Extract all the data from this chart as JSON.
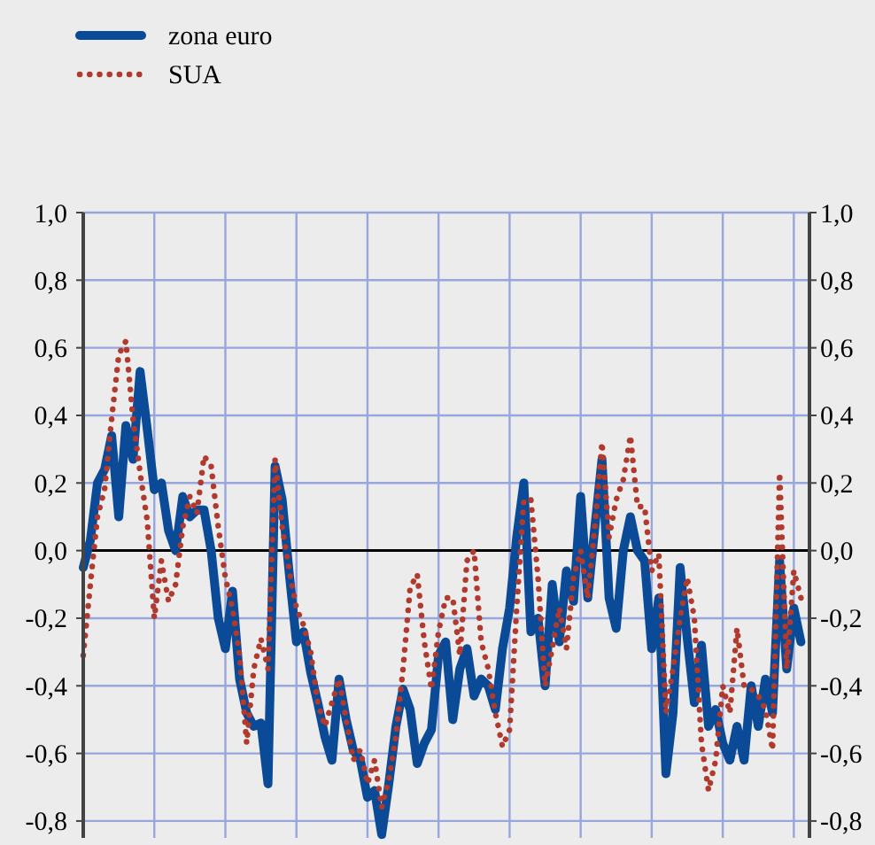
{
  "chart_data": {
    "type": "line",
    "legend": "top left",
    "grid": true,
    "categories": [
      null,
      null,
      null,
      null,
      null,
      null,
      null,
      null,
      null,
      null,
      null,
      null,
      null,
      null,
      null,
      null,
      null,
      null,
      null,
      null,
      null,
      null,
      null,
      null,
      null,
      null,
      null,
      null,
      null,
      null,
      null,
      null,
      null,
      null,
      null,
      null,
      null,
      null,
      null,
      null,
      null,
      null,
      null,
      null,
      null,
      null,
      null,
      null,
      null,
      null,
      null,
      null,
      null,
      null,
      null,
      null,
      null,
      null,
      null,
      null,
      null,
      null,
      null,
      null,
      null,
      null,
      null,
      null,
      null,
      null,
      null,
      null,
      null,
      null,
      null,
      null,
      null,
      null,
      null,
      null,
      null,
      null,
      null,
      null,
      null,
      null,
      null,
      null,
      null,
      null,
      null,
      null,
      null,
      null,
      null,
      null,
      null,
      null,
      null,
      null,
      null,
      null
    ],
    "ylim": [
      -0.85,
      1.0
    ],
    "yticks": [
      {
        "value": -0.8,
        "label": "-0,8"
      },
      {
        "value": -0.6,
        "label": "-0,6"
      },
      {
        "value": -0.4,
        "label": "-0,4"
      },
      {
        "value": -0.2,
        "label": "-0,2"
      },
      {
        "value": 0,
        "label": "0,0"
      },
      {
        "value": 0.2,
        "label": "0,2"
      },
      {
        "value": 0.4,
        "label": "0,4"
      },
      {
        "value": 0.6,
        "label": "0,6"
      },
      {
        "value": 0.8,
        "label": "0,8"
      },
      {
        "value": 1.0,
        "label": "1,0"
      }
    ],
    "y2lim": [
      -0.85,
      1.0
    ],
    "y2ticks": [
      {
        "value": -0.8,
        "label": "-0,8"
      },
      {
        "value": -0.6,
        "label": "-0,6"
      },
      {
        "value": -0.4,
        "label": "-0,4"
      },
      {
        "value": -0.2,
        "label": "-0,2"
      },
      {
        "value": 0,
        "label": "0,0"
      },
      {
        "value": 0.2,
        "label": "0,2"
      },
      {
        "value": 0.4,
        "label": "0,4"
      },
      {
        "value": 0.6,
        "label": "0,6"
      },
      {
        "value": 0.8,
        "label": "0,8"
      },
      {
        "value": 1.0,
        "label": "1,0"
      }
    ],
    "ref_lines": [
      {
        "axis": "y",
        "value": 0,
        "color": "#000000"
      }
    ],
    "series": [
      {
        "name": "zona euro",
        "color": "#0a4a96",
        "line_style": "solid",
        "values": [
          -0.05,
          0.03,
          0.2,
          0.24,
          0.34,
          0.1,
          0.37,
          0.27,
          0.53,
          0.36,
          0.18,
          0.2,
          0.06,
          0.0,
          0.16,
          0.1,
          0.12,
          0.12,
          0.0,
          -0.2,
          -0.29,
          -0.12,
          -0.38,
          -0.48,
          -0.52,
          -0.51,
          -0.69,
          0.25,
          0.15,
          -0.07,
          -0.27,
          -0.24,
          -0.36,
          -0.45,
          -0.55,
          -0.62,
          -0.38,
          -0.5,
          -0.59,
          -0.62,
          -0.73,
          -0.71,
          -0.84,
          -0.69,
          -0.52,
          -0.41,
          -0.47,
          -0.63,
          -0.57,
          -0.53,
          -0.31,
          -0.27,
          -0.5,
          -0.35,
          -0.29,
          -0.43,
          -0.38,
          -0.4,
          -0.47,
          -0.29,
          -0.17,
          0.04,
          0.2,
          -0.24,
          -0.2,
          -0.4,
          -0.1,
          -0.27,
          -0.06,
          -0.15,
          0.16,
          -0.14,
          0.07,
          0.27,
          -0.14,
          -0.23,
          0.0,
          0.1,
          0.0,
          -0.03,
          -0.29,
          -0.14,
          -0.66,
          -0.48,
          -0.05,
          -0.26,
          -0.45,
          -0.28,
          -0.52,
          -0.47,
          -0.57,
          -0.62,
          -0.52,
          -0.62,
          -0.4,
          -0.52,
          -0.38,
          -0.48,
          -0.03,
          -0.35,
          -0.17,
          -0.27
        ]
      },
      {
        "name": "SUA",
        "color": "#b03a2e",
        "line_style": "dotted",
        "values": [
          -0.31,
          -0.1,
          0.1,
          0.18,
          0.39,
          0.58,
          0.62,
          0.39,
          0.23,
          0.09,
          -0.2,
          -0.03,
          -0.15,
          -0.1,
          0.07,
          0.16,
          0.11,
          0.28,
          0.25,
          0.07,
          -0.08,
          -0.17,
          -0.31,
          -0.57,
          -0.35,
          -0.26,
          -0.35,
          0.27,
          0.07,
          -0.06,
          -0.17,
          -0.22,
          -0.3,
          -0.45,
          -0.52,
          -0.45,
          -0.38,
          -0.5,
          -0.62,
          -0.59,
          -0.69,
          -0.62,
          -0.76,
          -0.68,
          -0.55,
          -0.35,
          -0.11,
          -0.07,
          -0.27,
          -0.41,
          -0.24,
          -0.14,
          -0.14,
          -0.31,
          -0.03,
          0.0,
          -0.27,
          -0.35,
          -0.48,
          -0.58,
          -0.53,
          -0.17,
          0.15,
          0.15,
          -0.08,
          -0.4,
          -0.29,
          -0.17,
          -0.29,
          -0.08,
          0.0,
          -0.14,
          0.07,
          0.32,
          0.04,
          0.15,
          0.21,
          0.34,
          0.13,
          0.13,
          -0.06,
          -0.01,
          -0.48,
          -0.35,
          -0.2,
          -0.08,
          -0.2,
          -0.57,
          -0.71,
          -0.62,
          -0.4,
          -0.48,
          -0.23,
          -0.4,
          -0.41,
          -0.43,
          -0.47,
          -0.59,
          0.23,
          -0.35,
          -0.06,
          -0.14
        ]
      }
    ]
  }
}
